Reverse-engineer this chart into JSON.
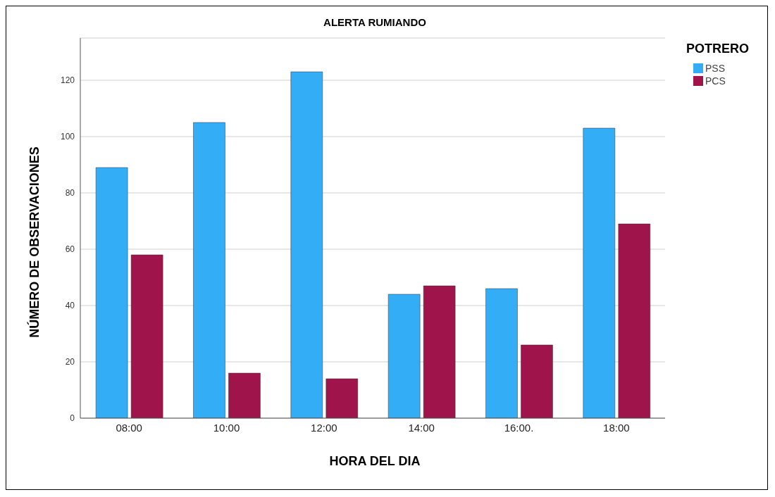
{
  "chart_data": {
    "type": "bar",
    "title": "ALERTA RUMIANDO",
    "xlabel": "HORA DEL DIA",
    "ylabel": "NÚMERO DE OBSERVACIONES",
    "legend_title": "POTRERO",
    "categories": [
      "08:00",
      "10:00",
      "12:00",
      "14:00",
      "16:00.",
      "18:00"
    ],
    "series": [
      {
        "name": "PSS",
        "color": "#33adf5",
        "values": [
          89,
          105,
          123,
          44,
          46,
          103
        ]
      },
      {
        "name": "PCS",
        "color": "#a0144c",
        "values": [
          58,
          16,
          14,
          47,
          26,
          69
        ]
      }
    ],
    "ylim": [
      0,
      135
    ],
    "yticks": [
      0,
      20,
      40,
      60,
      80,
      100,
      120
    ],
    "grid": "y",
    "legend": "top right"
  }
}
